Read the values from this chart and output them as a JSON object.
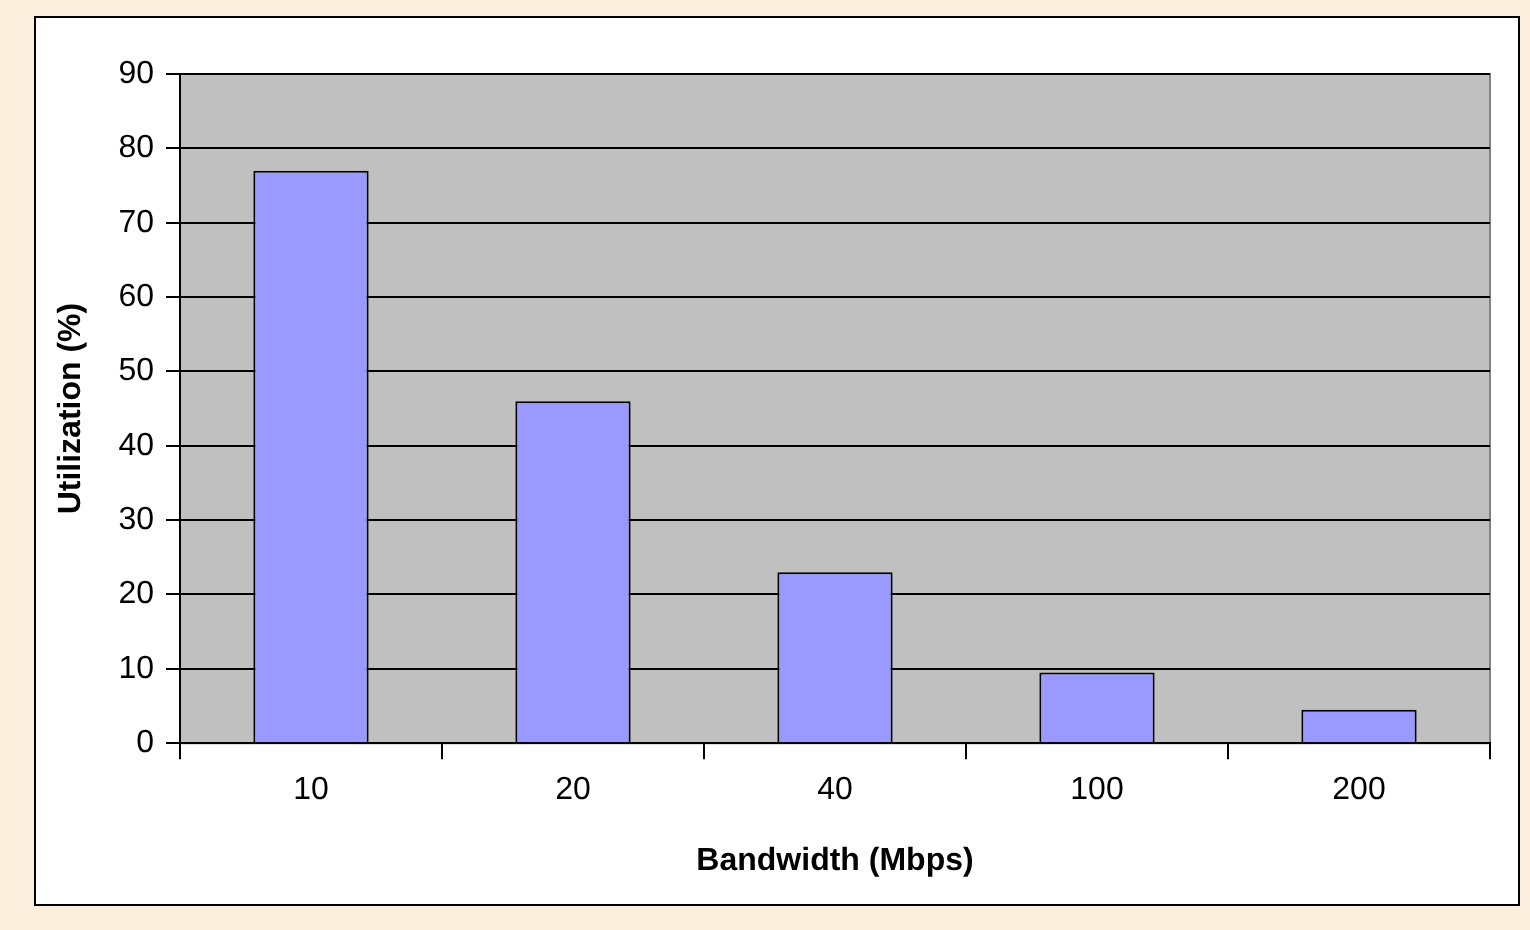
{
  "chart_data": {
    "type": "bar",
    "xlabel": "Bandwidth (Mbps)",
    "ylabel": "Utilization (%)",
    "categories": [
      "10",
      "20",
      "40",
      "100",
      "200"
    ],
    "values": [
      77,
      46,
      23,
      9.5,
      4.5
    ],
    "color": "#9999ff",
    "ylim": [
      0,
      90
    ],
    "yticks": [
      0,
      10,
      20,
      30,
      40,
      50,
      60,
      70,
      80,
      90
    ],
    "grid": "y"
  }
}
